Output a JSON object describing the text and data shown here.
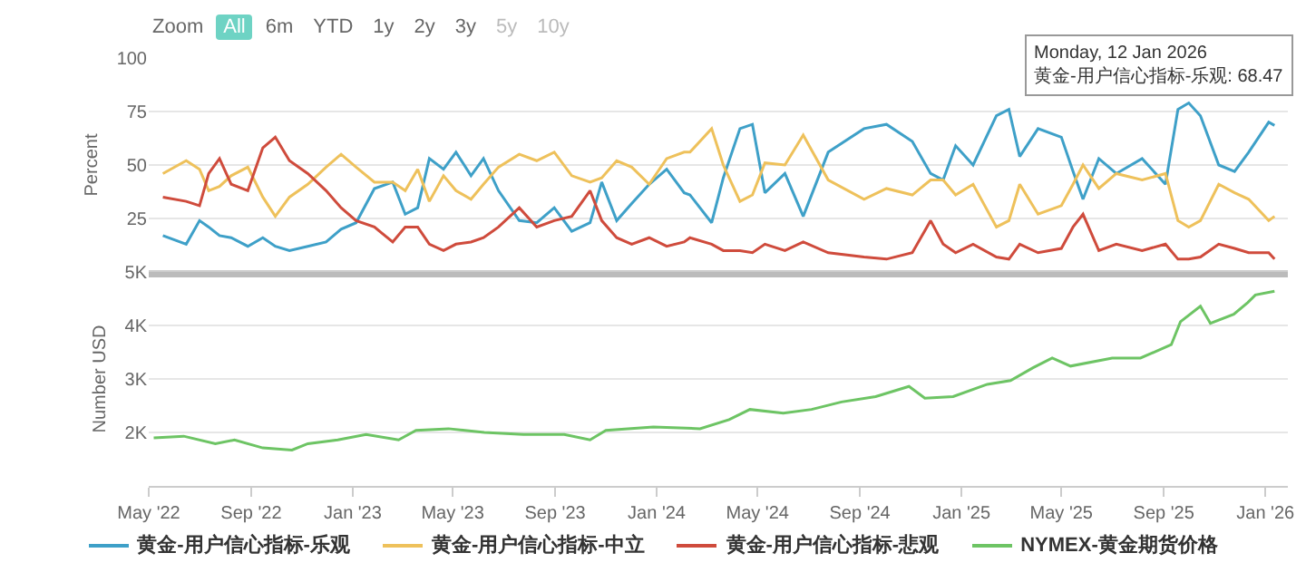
{
  "chart_data": [
    {
      "type": "line",
      "x": [
        "2022-05-18",
        "2022-06-15",
        "2022-07-01",
        "2022-07-12",
        "2022-07-25",
        "2022-08-08",
        "2022-08-28",
        "2022-09-15",
        "2022-09-30",
        "2022-10-17",
        "2022-11-08",
        "2022-11-30",
        "2022-12-18",
        "2023-01-05",
        "2023-01-27",
        "2023-02-18",
        "2023-03-05",
        "2023-03-20",
        "2023-04-03",
        "2023-04-20",
        "2023-05-05",
        "2023-05-23",
        "2023-06-07",
        "2023-06-25",
        "2023-07-20",
        "2023-08-10",
        "2023-08-31",
        "2023-09-21",
        "2023-10-13",
        "2023-10-27",
        "2023-11-14",
        "2023-12-02",
        "2023-12-23",
        "2024-01-13",
        "2024-02-03",
        "2024-02-10",
        "2024-03-07",
        "2024-03-21",
        "2024-04-10",
        "2024-04-25",
        "2024-05-10",
        "2024-06-03",
        "2024-06-25",
        "2024-07-25",
        "2024-09-06",
        "2024-10-03",
        "2024-11-03",
        "2024-11-25",
        "2024-12-10",
        "2024-12-25",
        "2025-01-15",
        "2025-02-12",
        "2025-02-27",
        "2025-03-12",
        "2025-04-03",
        "2025-05-01",
        "2025-05-15",
        "2025-05-27",
        "2025-06-15",
        "2025-07-06",
        "2025-08-06",
        "2025-09-03",
        "2025-09-18",
        "2025-10-01",
        "2025-10-15",
        "2025-11-06",
        "2025-11-25",
        "2025-12-12",
        "2026-01-05",
        "2026-01-12"
      ],
      "series": [
        {
          "name": "黄金-用户信心指标-乐观",
          "color": "#3ea0c8",
          "values": [
            17,
            13,
            24,
            21,
            17,
            16,
            12,
            16,
            12,
            10,
            12,
            14,
            20,
            23,
            39,
            42,
            27,
            30,
            53,
            48,
            56,
            45,
            53,
            38,
            24,
            23,
            30,
            19,
            23,
            42,
            24,
            32,
            41,
            48,
            37,
            36,
            23,
            44,
            67,
            69,
            37,
            46,
            26,
            56,
            67,
            69,
            61,
            46,
            43,
            59,
            50,
            73,
            76,
            54,
            67,
            63,
            47,
            34,
            53,
            46,
            53,
            41,
            76,
            79,
            73,
            50,
            47,
            56,
            70,
            68.47
          ]
        },
        {
          "name": "黄金-用户信心指标-中立",
          "color": "#eec15b",
          "values": [
            46,
            52,
            48,
            38,
            40,
            45,
            49,
            35,
            26,
            35,
            41,
            49,
            55,
            49,
            42,
            42,
            38,
            48,
            33,
            45,
            38,
            34,
            41,
            49,
            55,
            52,
            56,
            45,
            42,
            44,
            52,
            49,
            41,
            53,
            56,
            56,
            67,
            50,
            33,
            36,
            51,
            50,
            64,
            43,
            34,
            39,
            36,
            43,
            43,
            36,
            41,
            21,
            24,
            41,
            27,
            31,
            41,
            50,
            39,
            46,
            43,
            46,
            24,
            21,
            24,
            41,
            37,
            34,
            24,
            26
          ]
        },
        {
          "name": "黄金-用户信心指标-悲观",
          "color": "#cf4b3c",
          "values": [
            35,
            33,
            31,
            46,
            53,
            41,
            38,
            58,
            63,
            52,
            46,
            38,
            30,
            24,
            21,
            14,
            21,
            21,
            13,
            10,
            13,
            14,
            16,
            21,
            30,
            21,
            24,
            26,
            38,
            24,
            16,
            13,
            16,
            12,
            14,
            16,
            13,
            10,
            10,
            9,
            13,
            10,
            14,
            9,
            7,
            6,
            9,
            24,
            13,
            9,
            13,
            7,
            6,
            13,
            9,
            11,
            21,
            27,
            10,
            13,
            10,
            13,
            6,
            6,
            7,
            13,
            11,
            9,
            9,
            6
          ]
        }
      ],
      "ylabel": "Percent",
      "xlim": [
        "2022-05-01",
        "2026-01-28"
      ],
      "ylim": [
        0,
        100
      ],
      "yticks": [
        25,
        50,
        75,
        100
      ],
      "tick_labels": "y",
      "grid": "y",
      "legend": "bottom",
      "annotations": [
        "Zoom",
        "All",
        "6m",
        "YTD",
        "1y",
        "2y",
        "3y",
        "5y",
        "10y",
        {
          "text": "Monday, 12 Jan 2026\n黄金-用户信心指标-乐观: 68.47",
          "x": "2026-01-12",
          "y": 68.47
        }
      ]
    },
    {
      "type": "line",
      "x": [
        "2022-05-07",
        "2022-06-12",
        "2022-07-20",
        "2022-08-12",
        "2022-09-15",
        "2022-10-20",
        "2022-11-08",
        "2022-12-14",
        "2023-01-17",
        "2023-02-25",
        "2023-03-18",
        "2023-04-26",
        "2023-06-08",
        "2023-07-25",
        "2023-09-12",
        "2023-10-13",
        "2023-11-01",
        "2023-12-28",
        "2024-02-22",
        "2024-03-28",
        "2024-04-22",
        "2024-06-01",
        "2024-07-05",
        "2024-08-10",
        "2024-09-20",
        "2024-10-30",
        "2024-11-18",
        "2024-12-22",
        "2025-02-01",
        "2025-03-01",
        "2025-03-28",
        "2025-04-20",
        "2025-05-12",
        "2025-07-01",
        "2025-08-04",
        "2025-09-10",
        "2025-09-21",
        "2025-10-15",
        "2025-10-27",
        "2025-11-24",
        "2025-12-11",
        "2025-12-20",
        "2026-01-12"
      ],
      "series": [
        {
          "name": "NYMEX-黄金期货价格",
          "color": "#6dc464",
          "values": [
            1900,
            1930,
            1790,
            1860,
            1710,
            1670,
            1790,
            1860,
            1960,
            1860,
            2040,
            2070,
            2000,
            1960,
            1960,
            1860,
            2040,
            2100,
            2070,
            2240,
            2430,
            2360,
            2430,
            2570,
            2670,
            2860,
            2640,
            2670,
            2900,
            2970,
            3210,
            3390,
            3240,
            3390,
            3390,
            3640,
            4070,
            4360,
            4040,
            4210,
            4430,
            4570,
            4640
          ]
        }
      ],
      "ylabel": "Number USD",
      "xlim": [
        "2022-05-01",
        "2026-01-28"
      ],
      "xticks": [
        {
          "value": "2022-05-01",
          "label": "May '22"
        },
        {
          "value": "2022-09-01",
          "label": "Sep '22"
        },
        {
          "value": "2023-01-01",
          "label": "Jan '23"
        },
        {
          "value": "2023-05-01",
          "label": "May '23"
        },
        {
          "value": "2023-09-01",
          "label": "Sep '23"
        },
        {
          "value": "2024-01-01",
          "label": "Jan '24"
        },
        {
          "value": "2024-05-01",
          "label": "May '24"
        },
        {
          "value": "2024-09-01",
          "label": "Sep '24"
        },
        {
          "value": "2025-01-01",
          "label": "Jan '25"
        },
        {
          "value": "2025-05-01",
          "label": "May '25"
        },
        {
          "value": "2025-09-01",
          "label": "Sep '25"
        },
        {
          "value": "2026-01-01",
          "label": "Jan '26"
        }
      ],
      "ylim": [
        1000,
        5000
      ],
      "yticks": [
        {
          "value": 2000,
          "label": "2K"
        },
        {
          "value": 3000,
          "label": "3K"
        },
        {
          "value": 4000,
          "label": "4K"
        },
        {
          "value": 5000,
          "label": "5K"
        }
      ],
      "grid": "y",
      "legend": "bottom"
    }
  ]
}
